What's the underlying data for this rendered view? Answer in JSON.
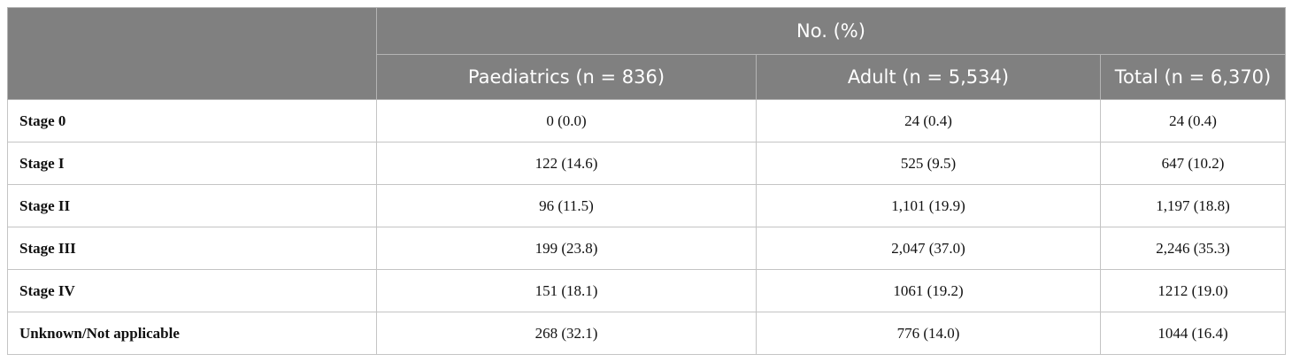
{
  "table": {
    "group_header": "No. (%)",
    "columns": [
      "Paediatrics (n = 836)",
      "Adult (n = 5,534)",
      "Total (n = 6,370)"
    ],
    "rows": [
      {
        "label": "Stage 0",
        "paediatrics": "0 (0.0)",
        "adult": "24 (0.4)",
        "total": "24 (0.4)"
      },
      {
        "label": "Stage I",
        "paediatrics": "122 (14.6)",
        "adult": "525 (9.5)",
        "total": "647 (10.2)"
      },
      {
        "label": "Stage II",
        "paediatrics": "96 (11.5)",
        "adult": "1,101 (19.9)",
        "total": "1,197 (18.8)"
      },
      {
        "label": "Stage III",
        "paediatrics": "199 (23.8)",
        "adult": "2,047 (37.0)",
        "total": "2,246 (35.3)"
      },
      {
        "label": "Stage IV",
        "paediatrics": "151 (18.1)",
        "adult": "1061 (19.2)",
        "total": "1212 (19.0)"
      },
      {
        "label": "Unknown/Not applicable",
        "paediatrics": "268 (32.1)",
        "adult": "776 (14.0)",
        "total": "1044 (16.4)"
      }
    ]
  }
}
